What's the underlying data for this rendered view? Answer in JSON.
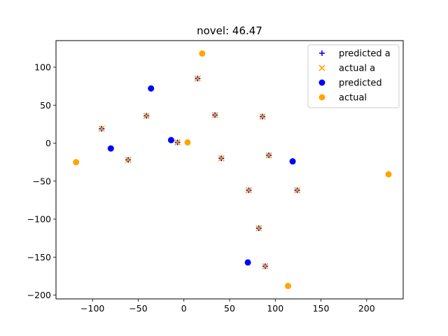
{
  "chart_data": {
    "type": "scatter",
    "title": "novel: 46.47",
    "xlabel": "",
    "ylabel": "",
    "xlim": [
      -140,
      240
    ],
    "ylim": [
      -205,
      135
    ],
    "xticks": [
      -100,
      -50,
      0,
      50,
      100,
      150,
      200
    ],
    "yticks": [
      -200,
      -150,
      -100,
      -50,
      0,
      50,
      100
    ],
    "xtick_labels": [
      "−100",
      "−50",
      "0",
      "50",
      "100",
      "150",
      "200"
    ],
    "ytick_labels": [
      "−200",
      "−150",
      "−100",
      "−50",
      "0",
      "50",
      "100"
    ],
    "grid": false,
    "legend_position": "top-right",
    "series": [
      {
        "name": "predicted a",
        "marker": "plus",
        "color": "#0000ff",
        "points": [
          [
            -90,
            19
          ],
          [
            -61,
            -22
          ],
          [
            -41,
            36
          ],
          [
            -7,
            1
          ],
          [
            15,
            85
          ],
          [
            34,
            37
          ],
          [
            41,
            -20
          ],
          [
            71,
            -62
          ],
          [
            82,
            -112
          ],
          [
            86,
            35
          ],
          [
            89,
            -162
          ],
          [
            93,
            -16
          ],
          [
            124,
            -62
          ]
        ]
      },
      {
        "name": "actual a",
        "marker": "x",
        "color": "#ffa500",
        "points": [
          [
            -90,
            19
          ],
          [
            -61,
            -22
          ],
          [
            -41,
            36
          ],
          [
            -7,
            1
          ],
          [
            15,
            85
          ],
          [
            34,
            37
          ],
          [
            41,
            -20
          ],
          [
            71,
            -62
          ],
          [
            82,
            -112
          ],
          [
            86,
            35
          ],
          [
            89,
            -162
          ],
          [
            93,
            -16
          ],
          [
            124,
            -62
          ]
        ]
      },
      {
        "name": "predicted",
        "marker": "circle",
        "color": "#0000ff",
        "points": [
          [
            -80,
            -7
          ],
          [
            -36,
            72
          ],
          [
            -14,
            4
          ],
          [
            70,
            -157
          ],
          [
            119,
            -24
          ]
        ]
      },
      {
        "name": "actual",
        "marker": "circle",
        "color": "#ffa500",
        "points": [
          [
            -118,
            -25
          ],
          [
            4,
            1
          ],
          [
            20,
            118
          ],
          [
            114,
            -188
          ],
          [
            224,
            -41
          ]
        ]
      }
    ]
  }
}
